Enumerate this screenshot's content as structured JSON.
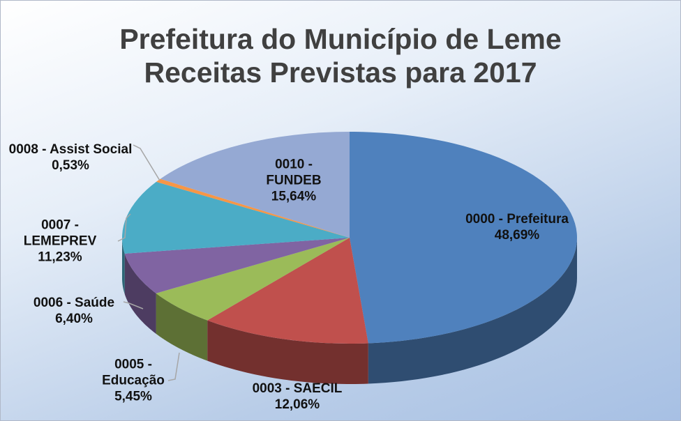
{
  "chart_data": {
    "type": "pie3d",
    "title": "Prefeitura do Município de Leme",
    "subtitle": "Receitas Previstas para 2017",
    "categories": [
      "0000 - Prefeitura",
      "0003 - SAECIL",
      "0005 - Educação",
      "0006 - Saúde",
      "0007 - LEMEPREV",
      "0008 - Assist Social",
      "0010 - FUNDEB"
    ],
    "values": [
      48.69,
      12.06,
      5.45,
      6.4,
      11.23,
      0.53,
      15.64
    ],
    "value_labels": [
      "48,69%",
      "12,06%",
      "5,45%",
      "6,40%",
      "11,23%",
      "0,53%",
      "15,64%"
    ],
    "colors": [
      "#4f81bd",
      "#c0504d",
      "#9bbb59",
      "#8064a2",
      "#4bacc6",
      "#f79646",
      "#95a9d3"
    ]
  }
}
